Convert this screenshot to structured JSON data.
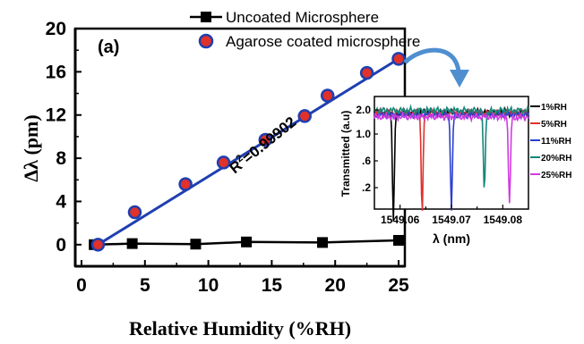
{
  "chart_data": [
    {
      "type": "scatter",
      "panel_label": "(a)",
      "xlabel": "Relative Humidity (%RH)",
      "ylabel": "Δλ (pm)",
      "xlim": [
        0,
        25
      ],
      "ylim": [
        -2,
        20
      ],
      "x_ticks": [
        "0",
        "5",
        "10",
        "15",
        "20",
        "25"
      ],
      "y_ticks": [
        "0",
        "4",
        "8",
        "12",
        "16",
        "20"
      ],
      "legend_position": "top",
      "series": [
        {
          "name": "Uncoated Microsphere",
          "marker": "square",
          "color": "#000000",
          "x": [
            1,
            4,
            9,
            13,
            19,
            25
          ],
          "y": [
            0,
            0.1,
            0.05,
            0.25,
            0.2,
            0.4
          ]
        },
        {
          "name": "Agarose coated microsphere",
          "marker": "circle",
          "color": "#e0312b",
          "edge_color": "#1f3fb0",
          "x": [
            1.3,
            4.2,
            8.2,
            11.2,
            14.5,
            17.6,
            19.4,
            22.5,
            25
          ],
          "y": [
            0,
            3.0,
            5.6,
            7.6,
            9.7,
            11.9,
            13.8,
            15.9,
            17.2
          ]
        }
      ],
      "fit_line": {
        "color": "#1f3fb0",
        "x": [
          1.3,
          25
        ],
        "y": [
          0,
          17.2
        ]
      },
      "annotation": {
        "prefix": "R",
        "superscript": "2",
        "suffix": "=0.99902"
      }
    },
    {
      "type": "line",
      "xlabel": "λ (nm)",
      "ylabel": "Transmitted (a.u)",
      "xlim": [
        1549.055,
        1549.085
      ],
      "ylim": [
        0.02,
        0.23
      ],
      "x_ticks": [
        "1549.06",
        "1549.07",
        "1549.08"
      ],
      "y_ticks": [
        ".2",
        ".6",
        "1.0",
        "2.0"
      ],
      "legend_position": "right",
      "series": [
        {
          "name": "1%RH",
          "color": "#000000",
          "dip": 1549.0587,
          "depth": 0.195,
          "width": 0.00018
        },
        {
          "name": "5%RH",
          "color": "#e0312b",
          "dip": 1549.0643,
          "depth": 0.185,
          "width": 0.00018
        },
        {
          "name": "11%RH",
          "color": "#2a3fd0",
          "dip": 1549.07,
          "depth": 0.175,
          "width": 0.00018
        },
        {
          "name": "20%RH",
          "color": "#16877a",
          "dip": 1549.0764,
          "depth": 0.155,
          "width": 0.00018
        },
        {
          "name": "25%RH",
          "color": "#d13be0",
          "dip": 1549.0813,
          "depth": 0.165,
          "width": 0.00018
        }
      ]
    }
  ],
  "colors": {
    "arrow": "#4f8fd0",
    "fit": "#1f3fb0",
    "marker_fill": "#e0312b"
  }
}
